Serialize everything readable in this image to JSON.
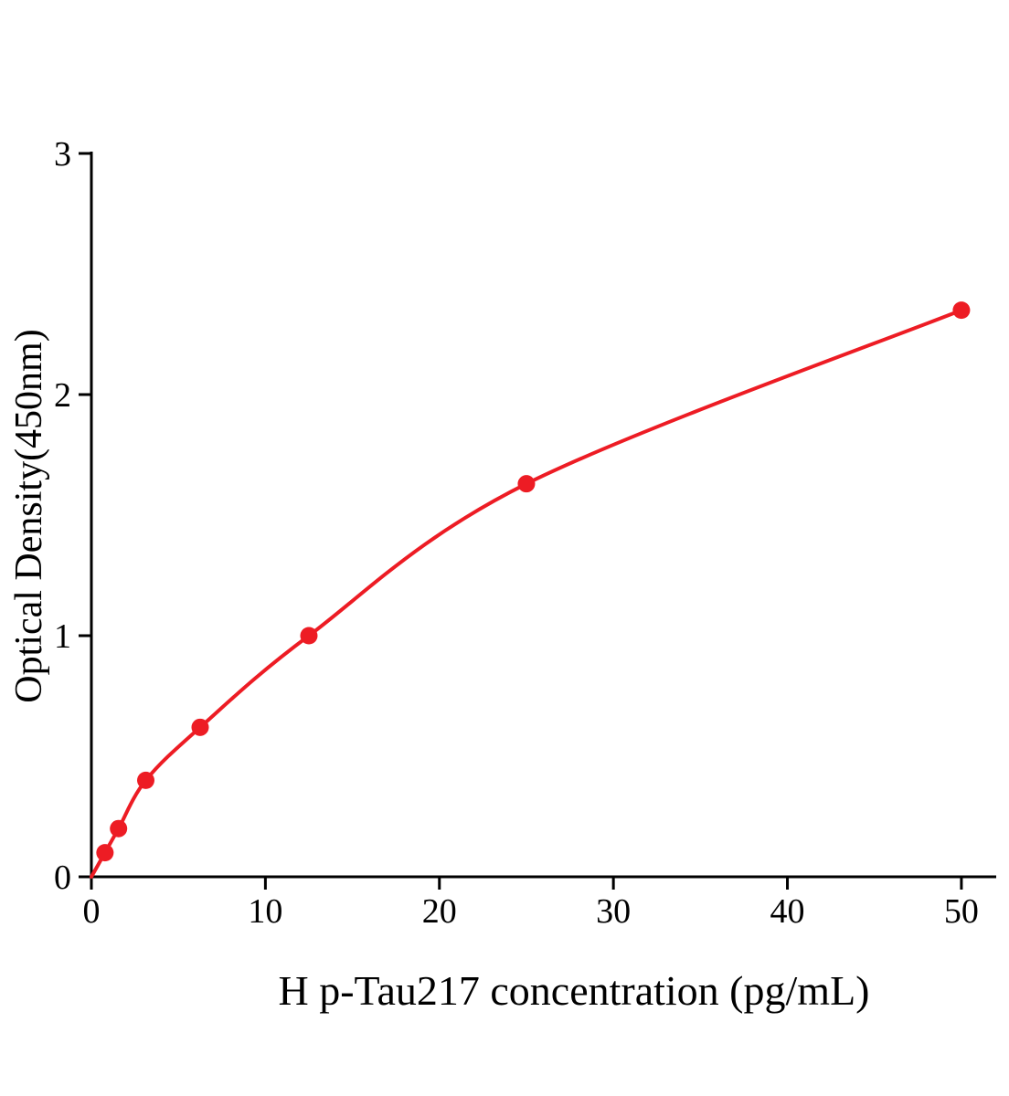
{
  "page": {
    "background_color": "#ffffff"
  },
  "chart_data": {
    "type": "line",
    "title": "",
    "xlabel": "H p-Tau217 concentration (pg/mL)",
    "ylabel": "Optical Density(450nm)",
    "x": [
      0,
      0.78,
      1.56,
      3.125,
      6.25,
      12.5,
      25,
      50
    ],
    "y": [
      0,
      0.1,
      0.2,
      0.4,
      0.62,
      1.0,
      1.63,
      2.35
    ],
    "xlim": [
      0,
      52
    ],
    "ylim": [
      0,
      3
    ],
    "xticks": [
      0,
      10,
      20,
      30,
      40,
      50
    ],
    "yticks": [
      0,
      1,
      2,
      3
    ],
    "curve_color": "#ed1c24",
    "point_color": "#ed1c24",
    "axis_color": "#000000",
    "grid": false,
    "legend": "none",
    "marker": "circle"
  }
}
